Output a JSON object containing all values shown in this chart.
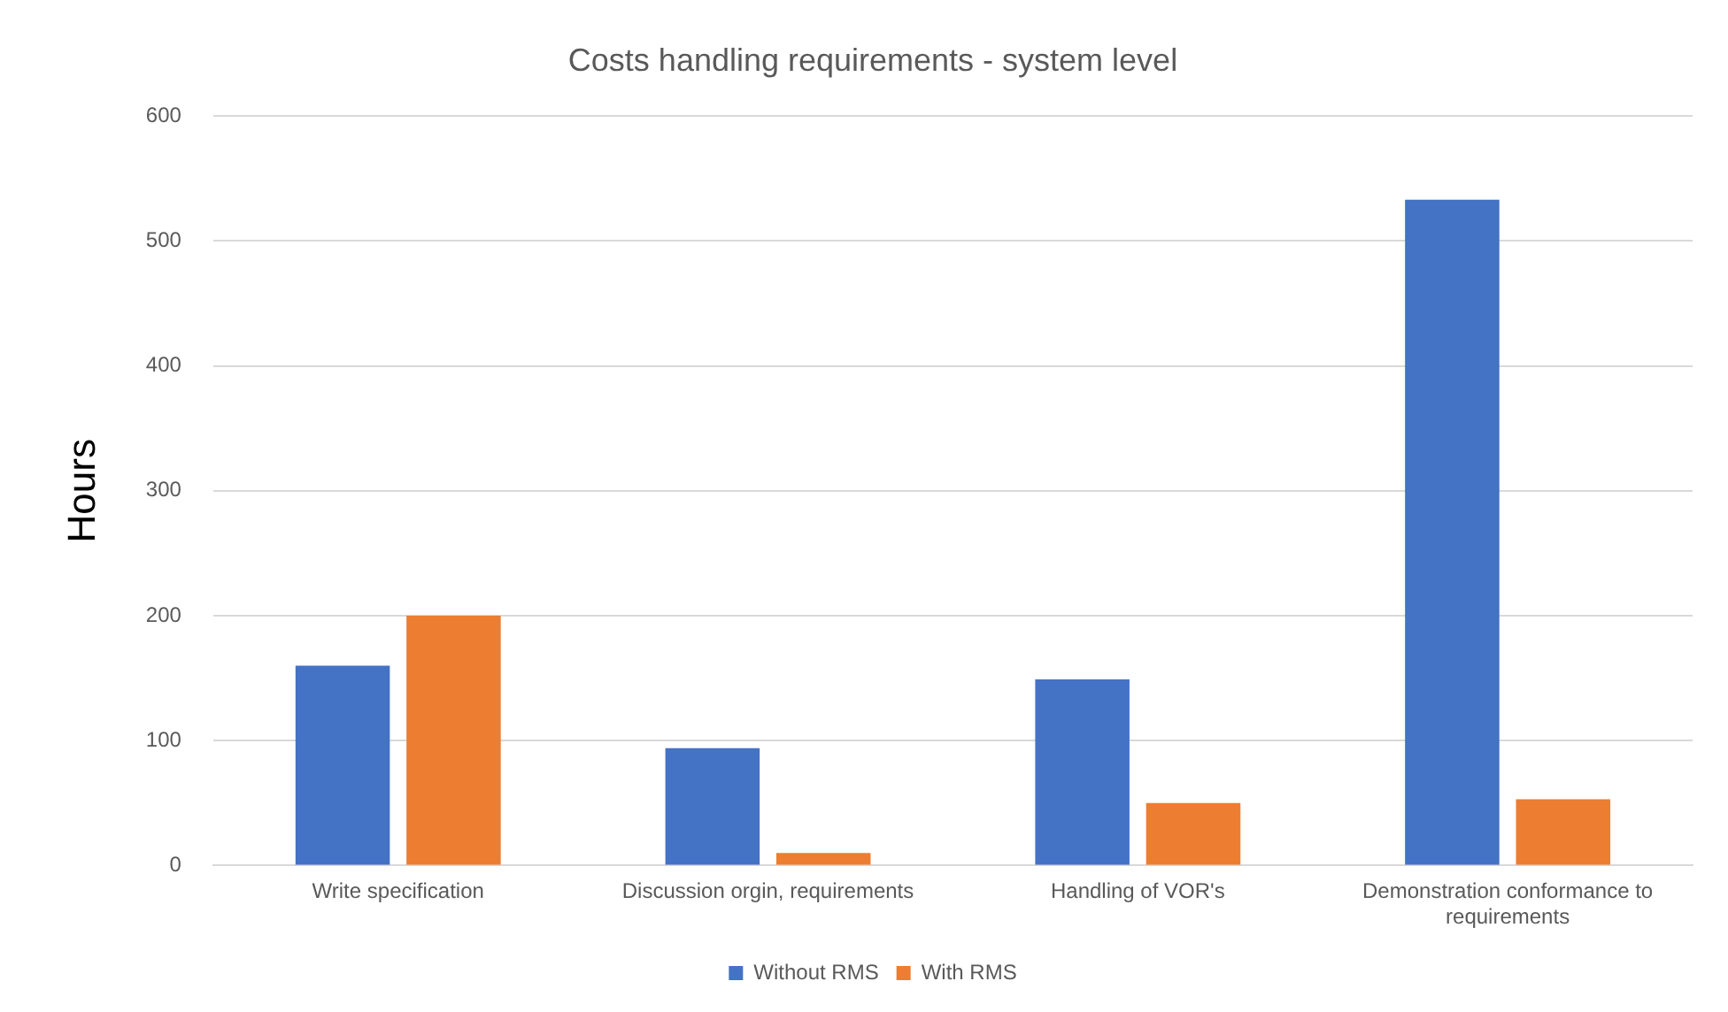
{
  "chart_data": {
    "type": "bar",
    "title": "Costs handling requirements - system level",
    "ylabel": "Hours",
    "categories": [
      "Write specification",
      "Discussion orgin, requirements",
      "Handling of VOR's",
      "Demonstration conformance to requirements"
    ],
    "series": [
      {
        "name": "Without RMS",
        "color": "#4472c4",
        "values": [
          160,
          94,
          149,
          533
        ]
      },
      {
        "name": "With RMS",
        "color": "#ed7d31",
        "values": [
          200,
          10,
          50,
          53
        ]
      }
    ],
    "ylim": [
      0,
      600
    ],
    "yticks": [
      0,
      100,
      200,
      300,
      400,
      500,
      600
    ],
    "grid": "y",
    "legend": "bottom"
  }
}
